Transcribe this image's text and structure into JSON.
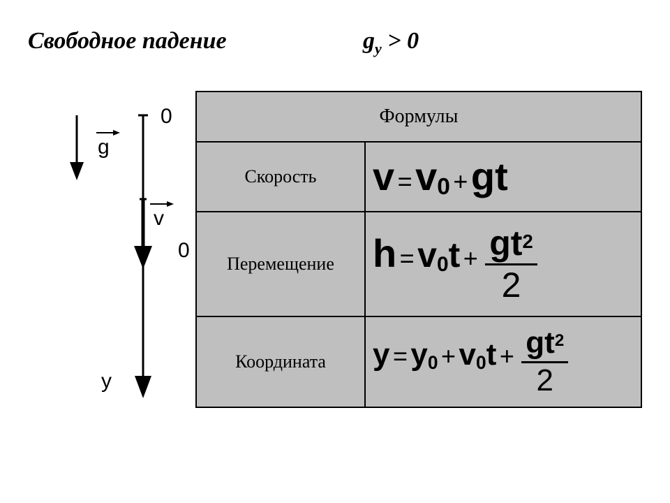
{
  "title": "Свободное падение",
  "condition_html": "g<sub>y</sub> > 0",
  "table": {
    "header": "Формулы",
    "rows": [
      {
        "label": "Скорость"
      },
      {
        "label": "Перемещение"
      },
      {
        "label": "Координата"
      }
    ]
  },
  "formulas": {
    "velocity_html": "<span class='fs56'>v</span> <span class='op fs36'>=</span> <span class='fs56'>v<span class='sub0'>0</span></span> <span class='op fs36'>+</span> <span class='fs56'>gt</span>",
    "displacement_html": "<span class='fs56'>h</span> <span class='op fs36'>=</span> <span class='fs50'>v<span class='sub0'>0</span>t</span> <span class='op fs36'>+</span> <span class='frac'><span class='num fs50'>gt<sup>2</sup></span><span class='den fs50 op'>2</span></span>",
    "coordinate_html": "<span class='fs44'>y</span> <span class='op fs36'>=</span> <span class='fs44'>y<span class='sub0'>0</span></span> <span class='op fs36'>+</span> <span class='fs44'>v<span class='sub0'>0</span>t</span> <span class='op fs36'>+</span> <span class='frac'><span class='num fs44'>gt<sup>2</sup></span><span class='den fs44 op'>2</span></span>"
  },
  "diagram": {
    "labels": {
      "zero1": "0",
      "zero2": "0",
      "y_axis": "y",
      "g_vec": "g",
      "v_vec": "v"
    },
    "colors": {
      "stroke": "#000000",
      "bg": "#ffffff"
    }
  },
  "style": {
    "table_bg": "#bfbfbf",
    "border_color": "#000000",
    "page_bg": "#ffffff",
    "label_fontsize": 26,
    "header_fontsize": 28,
    "title_fontsize": 34
  }
}
